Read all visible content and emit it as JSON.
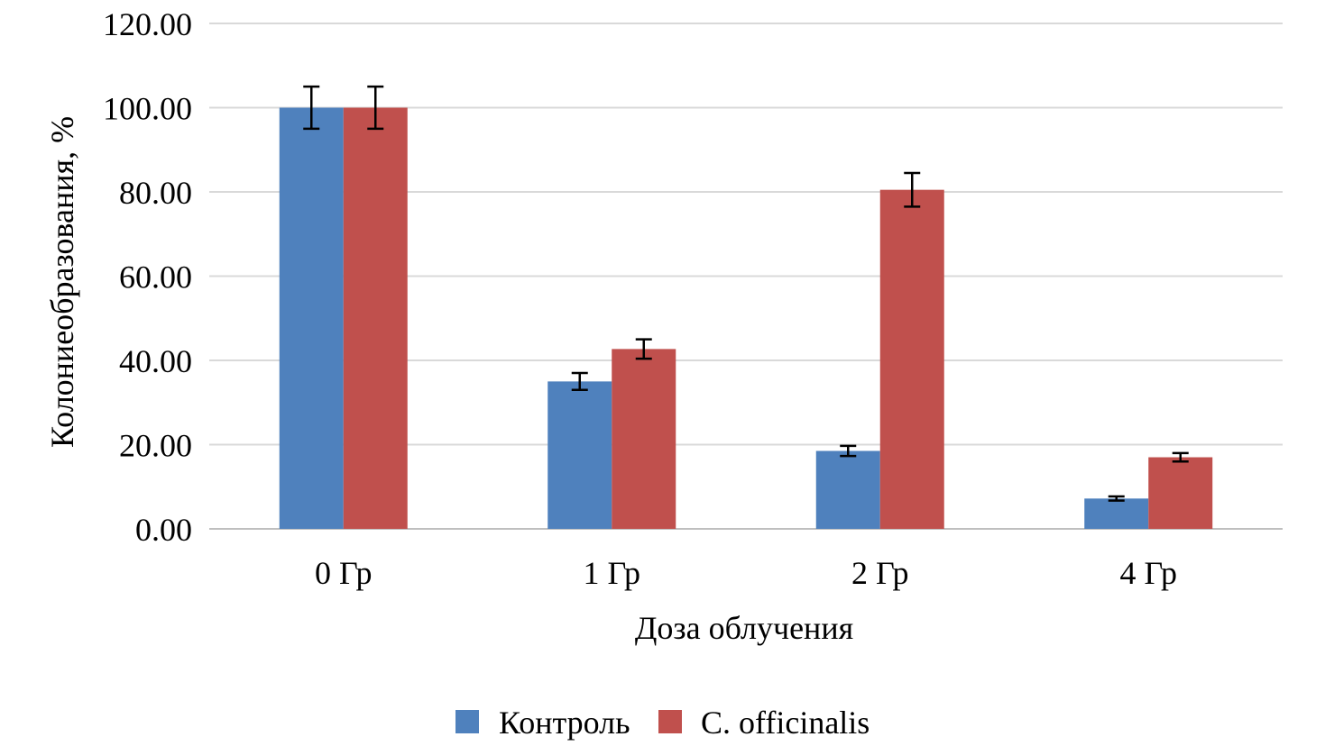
{
  "chart_data": {
    "type": "bar",
    "title": "",
    "xlabel": "Доза облучения",
    "ylabel": "Колониеобразования, %",
    "ylim": [
      0,
      120
    ],
    "yticks": [
      "0.00",
      "20.00",
      "40.00",
      "60.00",
      "80.00",
      "100.00",
      "120.00"
    ],
    "categories": [
      "0 Гр",
      "1 Гр",
      "2 Гр",
      "4 Гр"
    ],
    "series": [
      {
        "name": "Контроль",
        "color": "#4F81BD",
        "values": [
          100,
          35,
          18.5,
          7.2
        ],
        "errors": [
          5,
          2,
          1.2,
          0.5
        ]
      },
      {
        "name": "C. officinalis",
        "color": "#C0504D",
        "values": [
          100,
          42.7,
          80.5,
          17
        ],
        "errors": [
          5,
          2.3,
          4,
          1
        ]
      }
    ],
    "grid": true,
    "legend": "bottom"
  }
}
